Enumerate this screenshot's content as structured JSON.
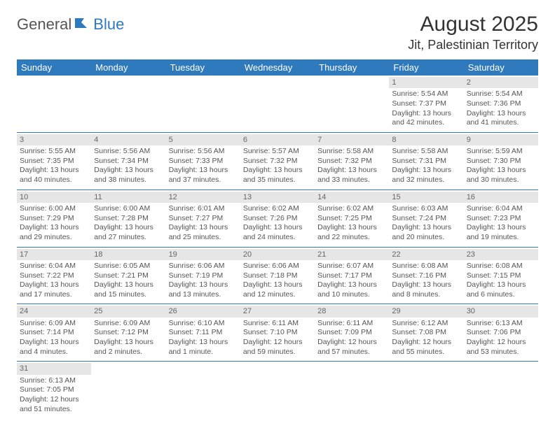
{
  "logo": {
    "general": "General",
    "blue": "Blue"
  },
  "title": "August 2025",
  "location": "Jit, Palestinian Territory",
  "colors": {
    "header_bg": "#2f79bd",
    "header_text": "#ffffff",
    "daynum_bg": "#e6e6e6",
    "cell_border": "#2f79bd",
    "text": "#555555"
  },
  "day_headers": [
    "Sunday",
    "Monday",
    "Tuesday",
    "Wednesday",
    "Thursday",
    "Friday",
    "Saturday"
  ],
  "weeks": [
    [
      null,
      null,
      null,
      null,
      null,
      {
        "n": "1",
        "sr": "Sunrise: 5:54 AM",
        "ss": "Sunset: 7:37 PM",
        "dl": "Daylight: 13 hours and 42 minutes."
      },
      {
        "n": "2",
        "sr": "Sunrise: 5:54 AM",
        "ss": "Sunset: 7:36 PM",
        "dl": "Daylight: 13 hours and 41 minutes."
      }
    ],
    [
      {
        "n": "3",
        "sr": "Sunrise: 5:55 AM",
        "ss": "Sunset: 7:35 PM",
        "dl": "Daylight: 13 hours and 40 minutes."
      },
      {
        "n": "4",
        "sr": "Sunrise: 5:56 AM",
        "ss": "Sunset: 7:34 PM",
        "dl": "Daylight: 13 hours and 38 minutes."
      },
      {
        "n": "5",
        "sr": "Sunrise: 5:56 AM",
        "ss": "Sunset: 7:33 PM",
        "dl": "Daylight: 13 hours and 37 minutes."
      },
      {
        "n": "6",
        "sr": "Sunrise: 5:57 AM",
        "ss": "Sunset: 7:32 PM",
        "dl": "Daylight: 13 hours and 35 minutes."
      },
      {
        "n": "7",
        "sr": "Sunrise: 5:58 AM",
        "ss": "Sunset: 7:32 PM",
        "dl": "Daylight: 13 hours and 33 minutes."
      },
      {
        "n": "8",
        "sr": "Sunrise: 5:58 AM",
        "ss": "Sunset: 7:31 PM",
        "dl": "Daylight: 13 hours and 32 minutes."
      },
      {
        "n": "9",
        "sr": "Sunrise: 5:59 AM",
        "ss": "Sunset: 7:30 PM",
        "dl": "Daylight: 13 hours and 30 minutes."
      }
    ],
    [
      {
        "n": "10",
        "sr": "Sunrise: 6:00 AM",
        "ss": "Sunset: 7:29 PM",
        "dl": "Daylight: 13 hours and 29 minutes."
      },
      {
        "n": "11",
        "sr": "Sunrise: 6:00 AM",
        "ss": "Sunset: 7:28 PM",
        "dl": "Daylight: 13 hours and 27 minutes."
      },
      {
        "n": "12",
        "sr": "Sunrise: 6:01 AM",
        "ss": "Sunset: 7:27 PM",
        "dl": "Daylight: 13 hours and 25 minutes."
      },
      {
        "n": "13",
        "sr": "Sunrise: 6:02 AM",
        "ss": "Sunset: 7:26 PM",
        "dl": "Daylight: 13 hours and 24 minutes."
      },
      {
        "n": "14",
        "sr": "Sunrise: 6:02 AM",
        "ss": "Sunset: 7:25 PM",
        "dl": "Daylight: 13 hours and 22 minutes."
      },
      {
        "n": "15",
        "sr": "Sunrise: 6:03 AM",
        "ss": "Sunset: 7:24 PM",
        "dl": "Daylight: 13 hours and 20 minutes."
      },
      {
        "n": "16",
        "sr": "Sunrise: 6:04 AM",
        "ss": "Sunset: 7:23 PM",
        "dl": "Daylight: 13 hours and 19 minutes."
      }
    ],
    [
      {
        "n": "17",
        "sr": "Sunrise: 6:04 AM",
        "ss": "Sunset: 7:22 PM",
        "dl": "Daylight: 13 hours and 17 minutes."
      },
      {
        "n": "18",
        "sr": "Sunrise: 6:05 AM",
        "ss": "Sunset: 7:21 PM",
        "dl": "Daylight: 13 hours and 15 minutes."
      },
      {
        "n": "19",
        "sr": "Sunrise: 6:06 AM",
        "ss": "Sunset: 7:19 PM",
        "dl": "Daylight: 13 hours and 13 minutes."
      },
      {
        "n": "20",
        "sr": "Sunrise: 6:06 AM",
        "ss": "Sunset: 7:18 PM",
        "dl": "Daylight: 13 hours and 12 minutes."
      },
      {
        "n": "21",
        "sr": "Sunrise: 6:07 AM",
        "ss": "Sunset: 7:17 PM",
        "dl": "Daylight: 13 hours and 10 minutes."
      },
      {
        "n": "22",
        "sr": "Sunrise: 6:08 AM",
        "ss": "Sunset: 7:16 PM",
        "dl": "Daylight: 13 hours and 8 minutes."
      },
      {
        "n": "23",
        "sr": "Sunrise: 6:08 AM",
        "ss": "Sunset: 7:15 PM",
        "dl": "Daylight: 13 hours and 6 minutes."
      }
    ],
    [
      {
        "n": "24",
        "sr": "Sunrise: 6:09 AM",
        "ss": "Sunset: 7:14 PM",
        "dl": "Daylight: 13 hours and 4 minutes."
      },
      {
        "n": "25",
        "sr": "Sunrise: 6:09 AM",
        "ss": "Sunset: 7:12 PM",
        "dl": "Daylight: 13 hours and 2 minutes."
      },
      {
        "n": "26",
        "sr": "Sunrise: 6:10 AM",
        "ss": "Sunset: 7:11 PM",
        "dl": "Daylight: 13 hours and 1 minute."
      },
      {
        "n": "27",
        "sr": "Sunrise: 6:11 AM",
        "ss": "Sunset: 7:10 PM",
        "dl": "Daylight: 12 hours and 59 minutes."
      },
      {
        "n": "28",
        "sr": "Sunrise: 6:11 AM",
        "ss": "Sunset: 7:09 PM",
        "dl": "Daylight: 12 hours and 57 minutes."
      },
      {
        "n": "29",
        "sr": "Sunrise: 6:12 AM",
        "ss": "Sunset: 7:08 PM",
        "dl": "Daylight: 12 hours and 55 minutes."
      },
      {
        "n": "30",
        "sr": "Sunrise: 6:13 AM",
        "ss": "Sunset: 7:06 PM",
        "dl": "Daylight: 12 hours and 53 minutes."
      }
    ],
    [
      {
        "n": "31",
        "sr": "Sunrise: 6:13 AM",
        "ss": "Sunset: 7:05 PM",
        "dl": "Daylight: 12 hours and 51 minutes."
      },
      null,
      null,
      null,
      null,
      null,
      null
    ]
  ]
}
